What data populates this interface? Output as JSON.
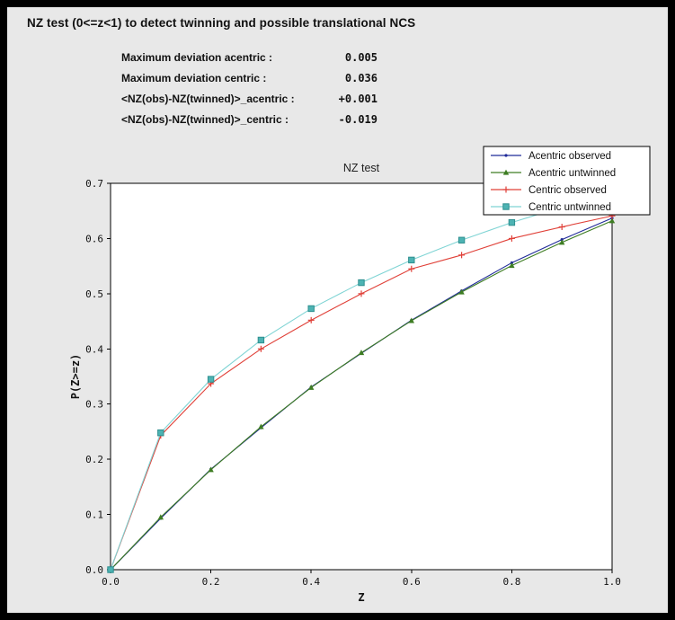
{
  "header": {
    "title": "NZ test (0<=z<1) to detect twinning and possible translational NCS"
  },
  "stats": [
    {
      "label": "Maximum deviation acentric :",
      "value": "0.005"
    },
    {
      "label": "Maximum deviation centric :",
      "value": "0.036"
    },
    {
      "label": "<NZ(obs)-NZ(twinned)>_acentric :",
      "value": "+0.001"
    },
    {
      "label": "<NZ(obs)-NZ(twinned)>_centric :",
      "value": "-0.019"
    }
  ],
  "chart_data": {
    "type": "line",
    "title": "NZ test",
    "xlabel": "Z",
    "ylabel": "P(Z>=z)",
    "xlim": [
      0.0,
      1.0
    ],
    "ylim": [
      0.0,
      0.7
    ],
    "xticks": [
      0.0,
      0.2,
      0.4,
      0.6,
      0.8,
      1.0
    ],
    "yticks": [
      0.0,
      0.1,
      0.2,
      0.3,
      0.4,
      0.5,
      0.6,
      0.7
    ],
    "grid": false,
    "legend_position": "upper right",
    "x": [
      0.0,
      0.1,
      0.2,
      0.3,
      0.4,
      0.5,
      0.6,
      0.7,
      0.8,
      0.9,
      1.0
    ],
    "series": [
      {
        "name": "Acentric observed",
        "color": "#1f2a99",
        "marker": "dot",
        "values": [
          0.0,
          0.093,
          0.182,
          0.257,
          0.331,
          0.392,
          0.452,
          0.505,
          0.556,
          0.598,
          0.637
        ]
      },
      {
        "name": "Acentric untwinned",
        "color": "#3e7d23",
        "marker": "triangle",
        "values": [
          0.0,
          0.095,
          0.181,
          0.259,
          0.33,
          0.393,
          0.451,
          0.503,
          0.551,
          0.593,
          0.632
        ]
      },
      {
        "name": "Centric observed",
        "color": "#e04038",
        "marker": "plus",
        "values": [
          0.0,
          0.243,
          0.337,
          0.4,
          0.452,
          0.5,
          0.545,
          0.57,
          0.6,
          0.621,
          0.641
        ]
      },
      {
        "name": "Centric untwinned",
        "color": "#7fd4d4",
        "marker": "square",
        "marker_fill": "#4db3b3",
        "marker_edge": "#2e8f8f",
        "values": [
          0.0,
          0.248,
          0.345,
          0.416,
          0.473,
          0.52,
          0.561,
          0.597,
          0.629,
          0.657,
          0.683
        ]
      }
    ]
  }
}
